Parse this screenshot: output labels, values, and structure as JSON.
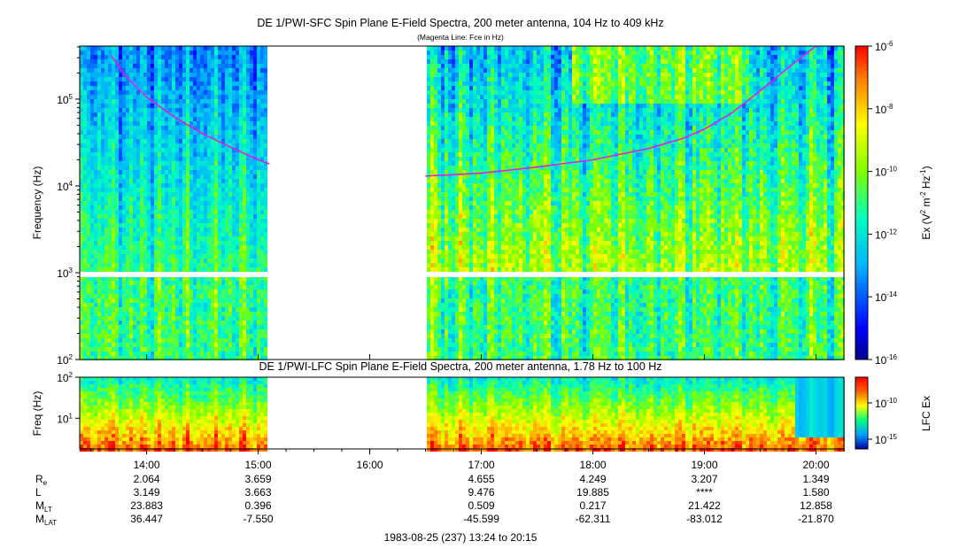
{
  "chart_data": [
    {
      "type": "heatmap",
      "title": "DE 1/PWI-SFC  Spin Plane E-Field Spectra, 200 meter antenna, 104 Hz to 409 kHz",
      "subtitle": "(Magenta Line: Fce in Hz)",
      "ylabel": "Frequency (Hz)",
      "yscale": "log",
      "ylim": [
        100,
        409000
      ],
      "yticks": [
        {
          "value": 100,
          "base": "10",
          "exp": "2"
        },
        {
          "value": 1000,
          "base": "10",
          "exp": "3"
        },
        {
          "value": 10000,
          "base": "10",
          "exp": "4"
        },
        {
          "value": 100000,
          "base": "10",
          "exp": "5"
        }
      ],
      "data_gap_hours": [
        15.1,
        16.5
      ],
      "fce_line": {
        "color": "#e020e0",
        "segment1": {
          "t": [
            13.68,
            13.8,
            14.0,
            14.25,
            14.5,
            14.75,
            15.0,
            15.1
          ],
          "f": [
            320000,
            190000,
            105000,
            62000,
            40000,
            28000,
            20000,
            18000
          ]
        },
        "segment2": {
          "t": [
            16.5,
            17.0,
            17.5,
            18.0,
            18.5,
            18.8,
            19.0,
            19.25,
            19.5,
            19.75,
            20.0
          ],
          "f": [
            13000,
            14000,
            16500,
            20000,
            27000,
            35000,
            45000,
            70000,
            125000,
            230000,
            409000
          ]
        }
      },
      "colorbar": {
        "label_text": "Ex (V",
        "label_sup1": "2",
        "label_mid": " m",
        "label_sup2": "-2",
        "label_mid2": " Hz",
        "label_sup3": "-1",
        "label_end": ")",
        "scale": "log",
        "range": [
          1e-16,
          1e-06
        ],
        "ticks": [
          {
            "base": "10",
            "exp": "-6"
          },
          {
            "base": "10",
            "exp": "-8"
          },
          {
            "base": "10",
            "exp": "-10"
          },
          {
            "base": "10",
            "exp": "-12"
          },
          {
            "base": "10",
            "exp": "-14"
          },
          {
            "base": "10",
            "exp": "-16"
          }
        ]
      }
    },
    {
      "type": "heatmap",
      "title": "DE 1/PWI-LFC  Spin Plane E-Field Spectra, 200 meter antenna, 1.78 Hz to 100 Hz",
      "ylabel": "Freq (Hz)",
      "yscale": "log",
      "ylim": [
        1.78,
        100
      ],
      "yticks": [
        {
          "value": 100,
          "base": "10",
          "exp": "2"
        },
        {
          "value": 10,
          "base": "10",
          "exp": "1"
        }
      ],
      "data_gap_hours": [
        15.1,
        16.5
      ],
      "colorbar": {
        "label": "LFC Ex",
        "scale": "log",
        "ticks": [
          {
            "base": "10",
            "exp": "-10"
          },
          {
            "base": "10",
            "exp": "-15"
          }
        ]
      }
    }
  ],
  "time_axis": {
    "range_hours": [
      13.4,
      20.25
    ],
    "ticks": [
      {
        "t": 14,
        "label": "14:00"
      },
      {
        "t": 15,
        "label": "15:00"
      },
      {
        "t": 16,
        "label": "16:00"
      },
      {
        "t": 17,
        "label": "17:00"
      },
      {
        "t": 18,
        "label": "18:00"
      },
      {
        "t": 19,
        "label": "19:00"
      },
      {
        "t": 20,
        "label": "20:00"
      }
    ]
  },
  "ephemeris": {
    "rows": [
      {
        "label": "R",
        "sub": "e",
        "values": [
          "2.064",
          "3.659",
          "",
          "4.655",
          "4.249",
          "3.207",
          "1.349"
        ]
      },
      {
        "label": "L",
        "sub": "",
        "values": [
          "3.149",
          "3.663",
          "",
          "9.476",
          "19.885",
          "****",
          "1.580"
        ]
      },
      {
        "label": "M",
        "sub": "LT",
        "values": [
          "23.883",
          "0.396",
          "",
          "0.509",
          "0.217",
          "21.422",
          "12.858"
        ]
      },
      {
        "label": "M",
        "sub": "LAT",
        "values": [
          "36.447",
          "-7.550",
          "",
          "-45.599",
          "-62.311",
          "-83.012",
          "-21.870"
        ]
      }
    ]
  },
  "footer": "1983-08-25 (237) 13:24 to 20:15"
}
